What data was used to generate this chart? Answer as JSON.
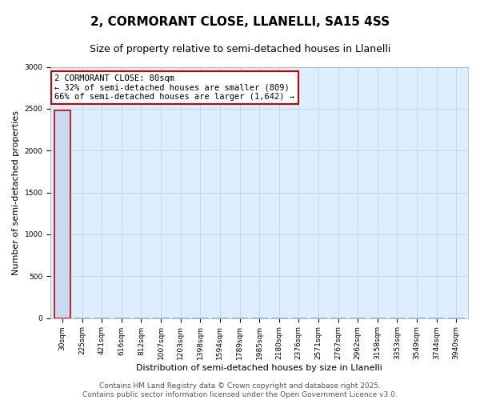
{
  "title": "2, CORMORANT CLOSE, LLANELLI, SA15 4SS",
  "subtitle": "Size of property relative to semi-detached houses in Llanelli",
  "xlabel": "Distribution of semi-detached houses by size in Llanelli",
  "ylabel": "Number of semi-detached properties",
  "annotation_title": "2 CORMORANT CLOSE: 80sqm",
  "annotation_line1": "← 32% of semi-detached houses are smaller (809)",
  "annotation_line2": "66% of semi-detached houses are larger (1,642) →",
  "footer_line1": "Contains HM Land Registry data © Crown copyright and database right 2025.",
  "footer_line2": "Contains public sector information licensed under the Open Government Licence v3.0.",
  "categories": [
    "30sqm",
    "225sqm",
    "421sqm",
    "616sqm",
    "812sqm",
    "1007sqm",
    "1203sqm",
    "1398sqm",
    "1594sqm",
    "1789sqm",
    "1985sqm",
    "2180sqm",
    "2376sqm",
    "2571sqm",
    "2767sqm",
    "2962sqm",
    "3158sqm",
    "3353sqm",
    "3549sqm",
    "3744sqm",
    "3940sqm"
  ],
  "values": [
    2480,
    10,
    5,
    3,
    2,
    2,
    1,
    1,
    1,
    1,
    1,
    1,
    1,
    1,
    1,
    1,
    1,
    1,
    1,
    1,
    1
  ],
  "highlight_index": 0,
  "bar_color": "#c8daf0",
  "highlight_bar_color": "#c8daf0",
  "highlight_edge_color": "#cc0000",
  "default_edge_color": "#7aaad0",
  "annotation_box_color": "#ffffff",
  "annotation_border_color": "#cc0000",
  "plot_bg_color": "#ddeeff",
  "ylim": [
    0,
    3000
  ],
  "yticks": [
    0,
    500,
    1000,
    1500,
    2000,
    2500,
    3000
  ],
  "background_color": "#ffffff",
  "grid_color": "#bbccdd",
  "title_fontsize": 11,
  "subtitle_fontsize": 9,
  "axis_label_fontsize": 8,
  "tick_fontsize": 6.5,
  "annotation_fontsize": 7.5,
  "footer_fontsize": 6.5
}
